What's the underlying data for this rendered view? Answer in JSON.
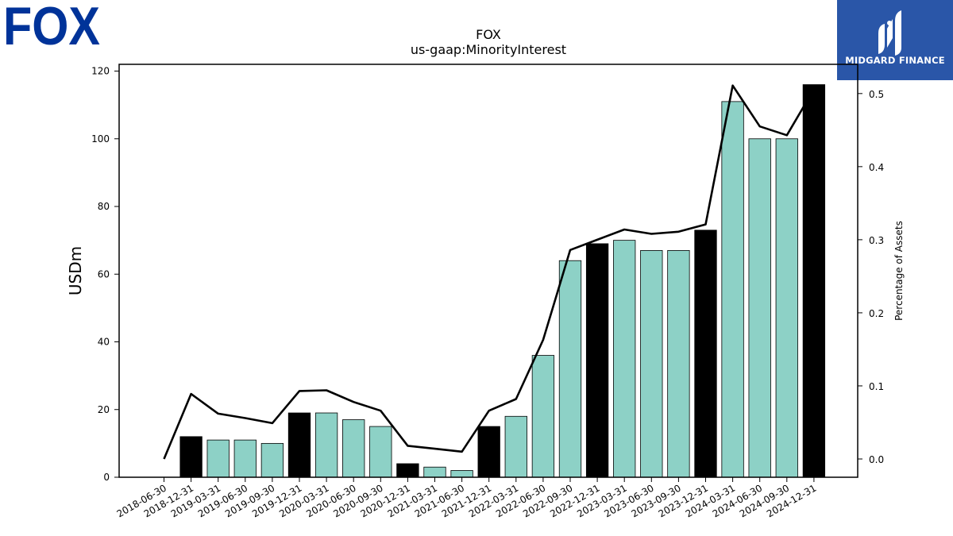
{
  "logos": {
    "left_text": "FOX",
    "right_text": "MIDGARD FINANCE",
    "left_color": "#003399",
    "right_bg": "#2a56a8"
  },
  "chart_data": {
    "type": "bar",
    "title": "FOX",
    "subtitle": "us-gaap:MinorityInterest",
    "ylabel": "USDm",
    "y2label": "Percentage of Assets",
    "ylim": [
      0,
      122
    ],
    "y2lim": [
      -0.025,
      0.54
    ],
    "yticks": [
      0,
      20,
      40,
      60,
      80,
      100,
      120
    ],
    "y2ticks": [
      0.0,
      0.1,
      0.2,
      0.3,
      0.4,
      0.5
    ],
    "categories": [
      "2018-06-30",
      "2018-12-31",
      "2019-03-31",
      "2019-06-30",
      "2019-09-30",
      "2019-12-31",
      "2020-03-31",
      "2020-06-30",
      "2020-09-30",
      "2020-12-31",
      "2021-03-31",
      "2021-06-30",
      "2021-12-31",
      "2022-03-31",
      "2022-06-30",
      "2022-09-30",
      "2022-12-31",
      "2023-03-31",
      "2023-06-30",
      "2023-09-30",
      "2023-12-31",
      "2024-03-31",
      "2024-06-30",
      "2024-09-30",
      "2024-12-31"
    ],
    "series": [
      {
        "kind": "bar",
        "values": [
          0,
          12,
          11,
          11,
          10,
          19,
          19,
          17,
          15,
          4,
          3,
          2,
          15,
          18,
          36,
          64,
          69,
          70,
          67,
          67,
          73,
          111,
          100,
          100,
          116
        ],
        "highlight": [
          false,
          true,
          false,
          false,
          false,
          true,
          false,
          false,
          false,
          true,
          false,
          false,
          true,
          false,
          false,
          false,
          true,
          false,
          false,
          false,
          true,
          false,
          false,
          false,
          true
        ]
      },
      {
        "kind": "line",
        "values": [
          0.0,
          0.089,
          0.062,
          0.056,
          0.049,
          0.093,
          0.094,
          0.078,
          0.066,
          0.018,
          0.014,
          0.01,
          0.066,
          0.082,
          0.163,
          0.286,
          0.3,
          0.314,
          0.308,
          0.311,
          0.321,
          0.511,
          0.455,
          0.443,
          0.506
        ]
      }
    ],
    "colors": {
      "bar": "#8dd1c6",
      "bar_highlight": "#000000",
      "line": "#000000"
    },
    "grid": false,
    "legend": "none"
  }
}
